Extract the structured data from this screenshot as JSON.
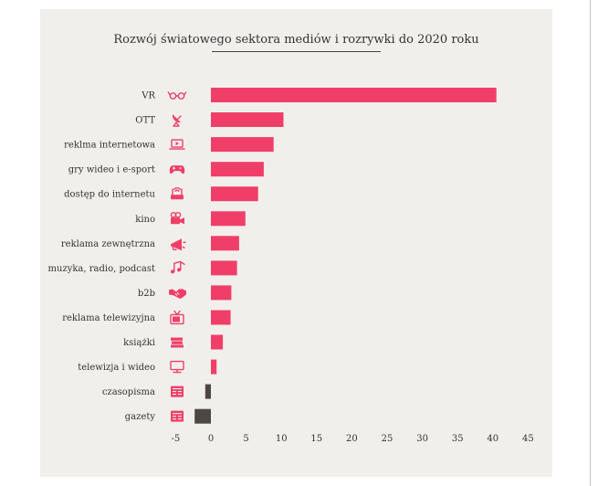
{
  "colors": {
    "positive": "#ef3f68",
    "negative": "#4d4744",
    "icon": "#ef3f68",
    "background": "#f1efec"
  },
  "chart_data": {
    "type": "bar",
    "orientation": "horizontal",
    "title": "Rozwój światowego sektora mediów i rozrywki do 2020 roku",
    "xlabel": "",
    "ylabel": "",
    "xlim": [
      -5,
      45
    ],
    "xticks": [
      -5,
      0,
      5,
      10,
      15,
      20,
      25,
      30,
      35,
      40,
      45
    ],
    "grid": false,
    "categories": [
      {
        "label": "VR",
        "value": 40.5,
        "icon": "vr-glasses-icon"
      },
      {
        "label": "OTT",
        "value": 10.3,
        "icon": "satellite-dish-icon"
      },
      {
        "label": "reklma internetowa",
        "value": 8.9,
        "icon": "laptop-play-icon"
      },
      {
        "label": "gry wideo i e-sport",
        "value": 7.5,
        "icon": "gamepad-icon"
      },
      {
        "label": "dostęp do internetu",
        "value": 6.7,
        "icon": "router-icon"
      },
      {
        "label": "kino",
        "value": 4.9,
        "icon": "film-camera-icon"
      },
      {
        "label": "reklama zewnętrzna",
        "value": 4.0,
        "icon": "megaphone-icon"
      },
      {
        "label": "muzyka, radio, podcast",
        "value": 3.7,
        "icon": "music-notes-icon"
      },
      {
        "label": "b2b",
        "value": 2.9,
        "icon": "handshake-icon"
      },
      {
        "label": "reklama telewizyjna",
        "value": 2.8,
        "icon": "tv-antenna-icon"
      },
      {
        "label": "książki",
        "value": 1.7,
        "icon": "books-icon"
      },
      {
        "label": "telewizja i wideo",
        "value": 0.8,
        "icon": "monitor-icon"
      },
      {
        "label": "czasopisma",
        "value": -0.8,
        "icon": "magazine-icon"
      },
      {
        "label": "gazety",
        "value": -2.3,
        "icon": "newspaper-icon"
      }
    ]
  }
}
